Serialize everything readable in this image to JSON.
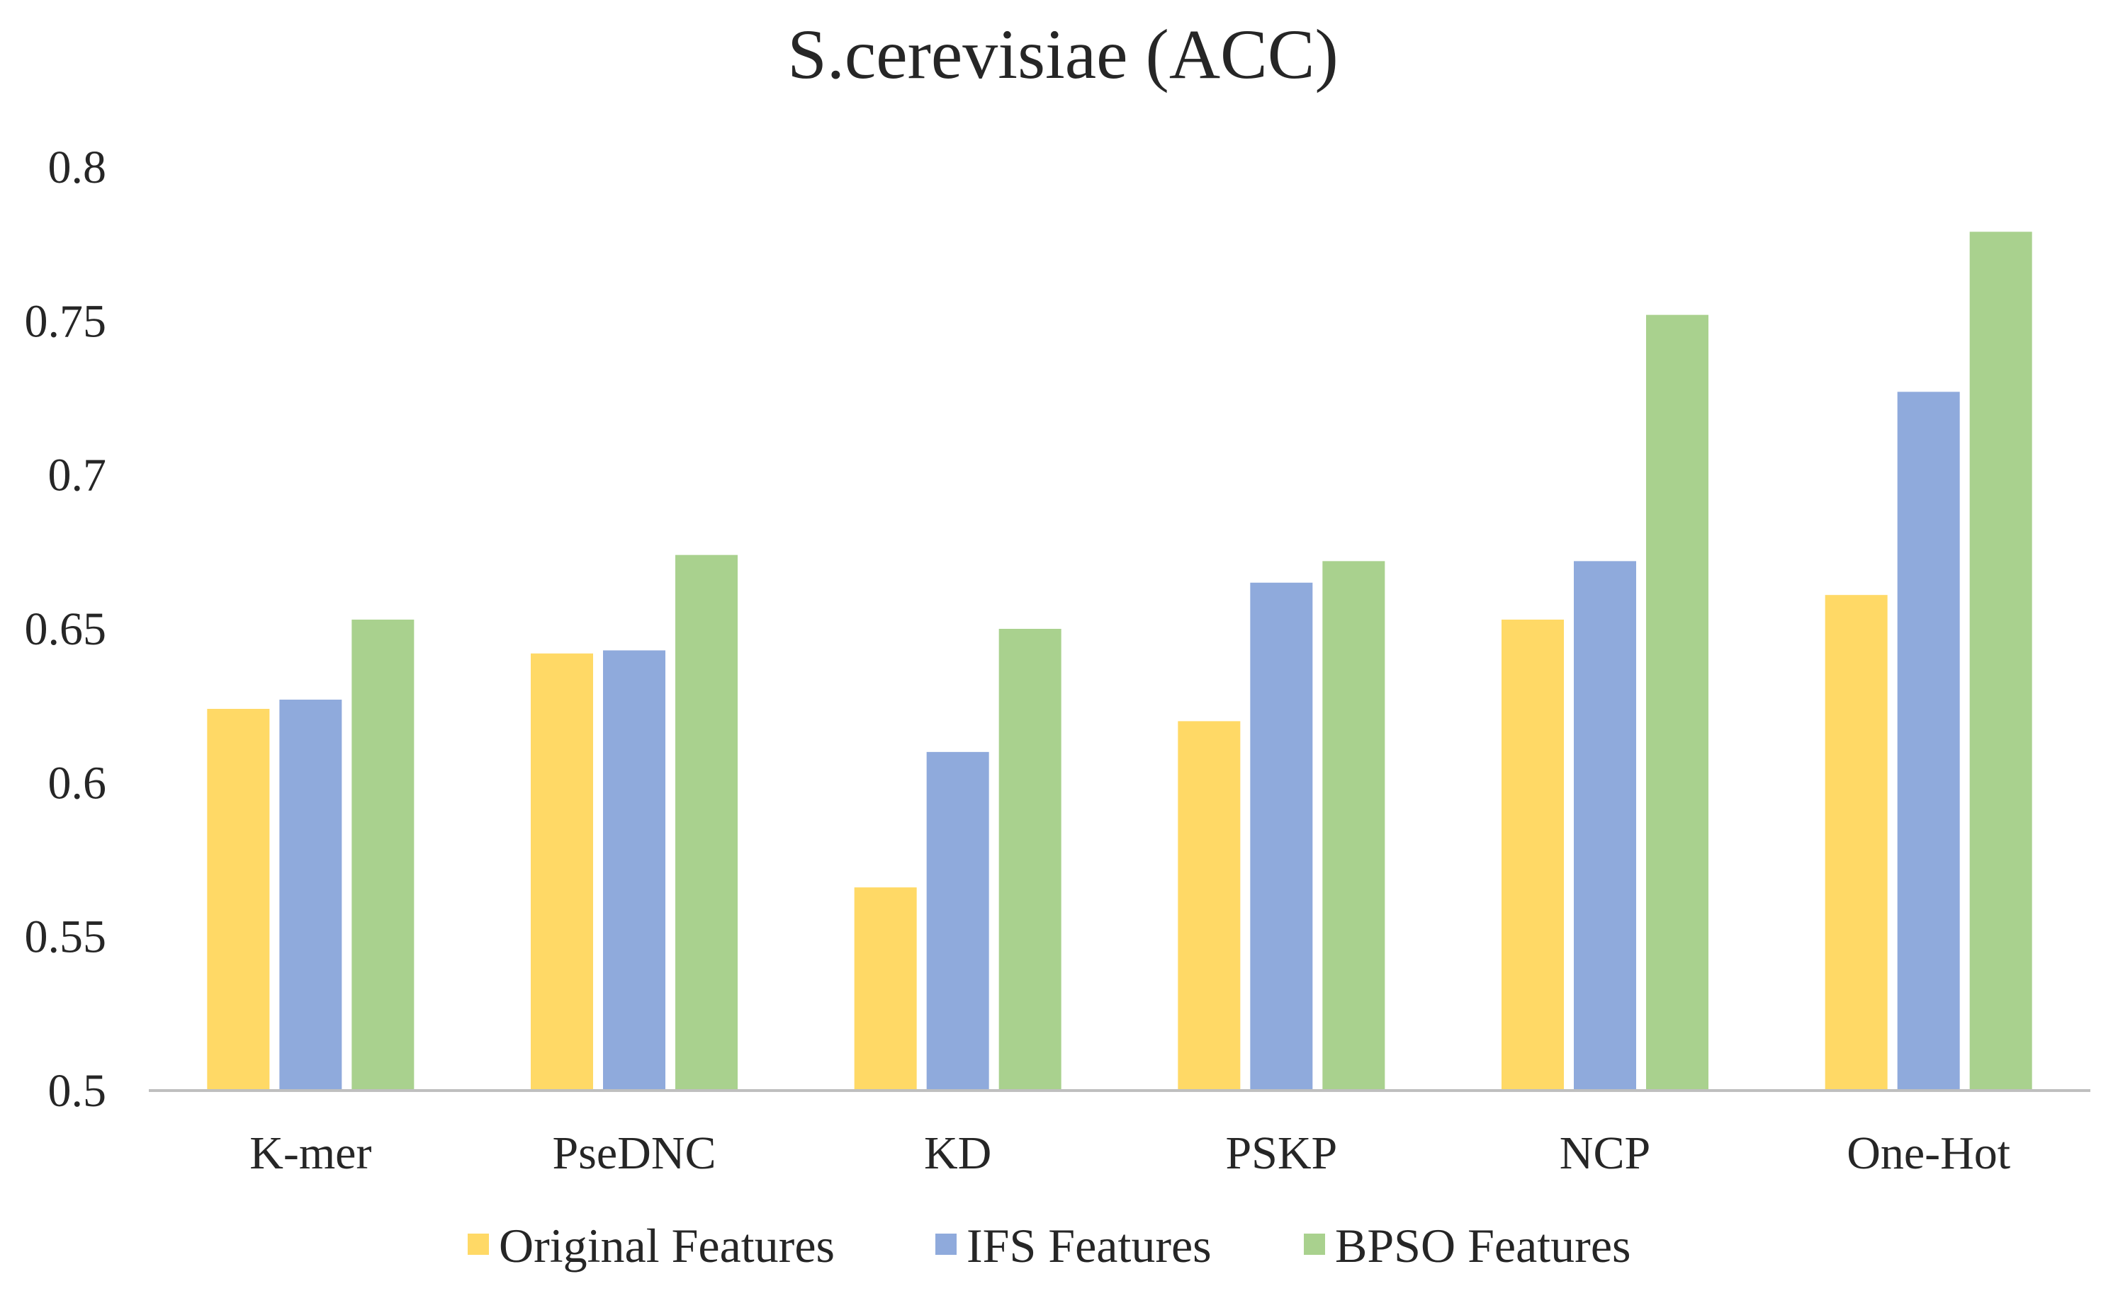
{
  "chart_data": {
    "type": "bar",
    "title": "S.cerevisiae (ACC)",
    "xlabel": "",
    "ylabel": "",
    "ylim": [
      0.5,
      0.8
    ],
    "yticks": [
      0.5,
      0.55,
      0.6,
      0.65,
      0.7,
      0.75,
      0.8
    ],
    "ytick_labels": [
      "0.5",
      "0.55",
      "0.6",
      "0.65",
      "0.7",
      "0.75",
      "0.8"
    ],
    "grid": false,
    "legend_position": "bottom",
    "categories": [
      "K-mer",
      "PseDNC",
      "KD",
      "PSKP",
      "NCP",
      "One-Hot"
    ],
    "series": [
      {
        "name": "Original Features",
        "color": "#FFD966",
        "values": [
          0.624,
          0.642,
          0.566,
          0.62,
          0.653,
          0.661
        ]
      },
      {
        "name": "IFS Features",
        "color": "#8FAADC",
        "values": [
          0.627,
          0.643,
          0.61,
          0.665,
          0.672,
          0.727
        ]
      },
      {
        "name": "BPSO Features",
        "color": "#A9D18E",
        "values": [
          0.653,
          0.674,
          0.65,
          0.672,
          0.752,
          0.779
        ]
      }
    ],
    "axis_color": "#BFBFBF"
  }
}
